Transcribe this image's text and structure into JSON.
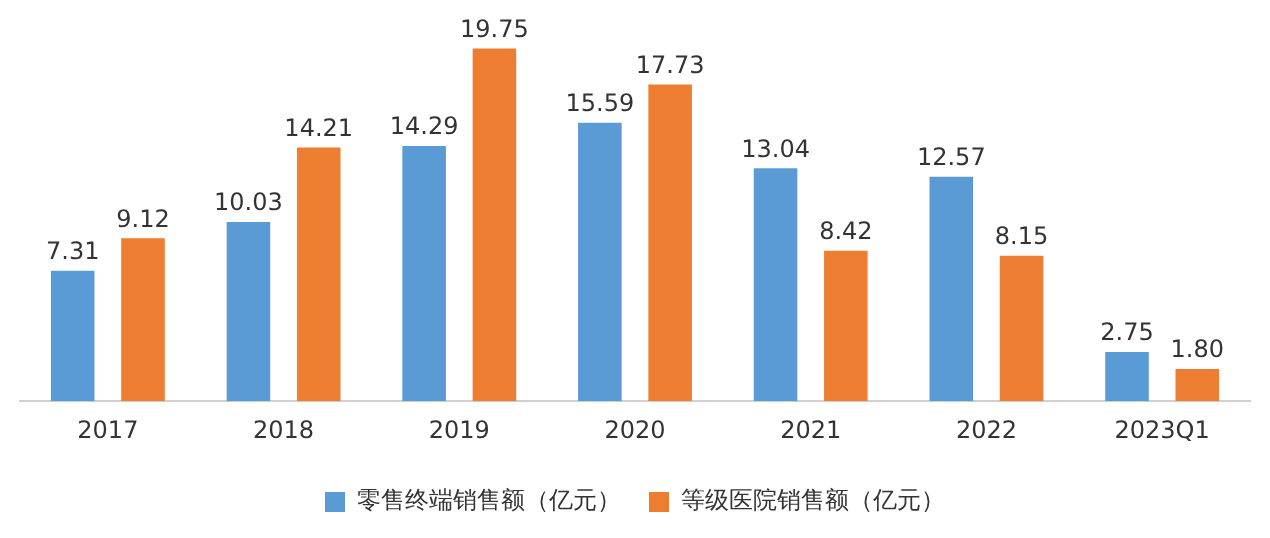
{
  "chart_data": {
    "type": "bar",
    "categories": [
      "2017",
      "2018",
      "2019",
      "2020",
      "2021",
      "2022",
      "2023Q1"
    ],
    "series": [
      {
        "name": "零售终端销售额（亿元）",
        "color": "#5b9bd5",
        "values": [
          7.31,
          10.03,
          14.29,
          15.59,
          13.04,
          12.57,
          2.75
        ],
        "value_labels": [
          "7.31",
          "10.03",
          "14.29",
          "15.59",
          "13.04",
          "12.57",
          "2.75"
        ]
      },
      {
        "name": "等级医院销售额（亿元）",
        "color": "#ed7d31",
        "values": [
          9.12,
          14.21,
          19.75,
          17.73,
          8.42,
          8.15,
          1.8
        ],
        "value_labels": [
          "9.12",
          "14.21",
          "19.75",
          "17.73",
          "8.42",
          "8.15",
          "1.80"
        ]
      }
    ],
    "grid": false,
    "legend": "bottom"
  }
}
